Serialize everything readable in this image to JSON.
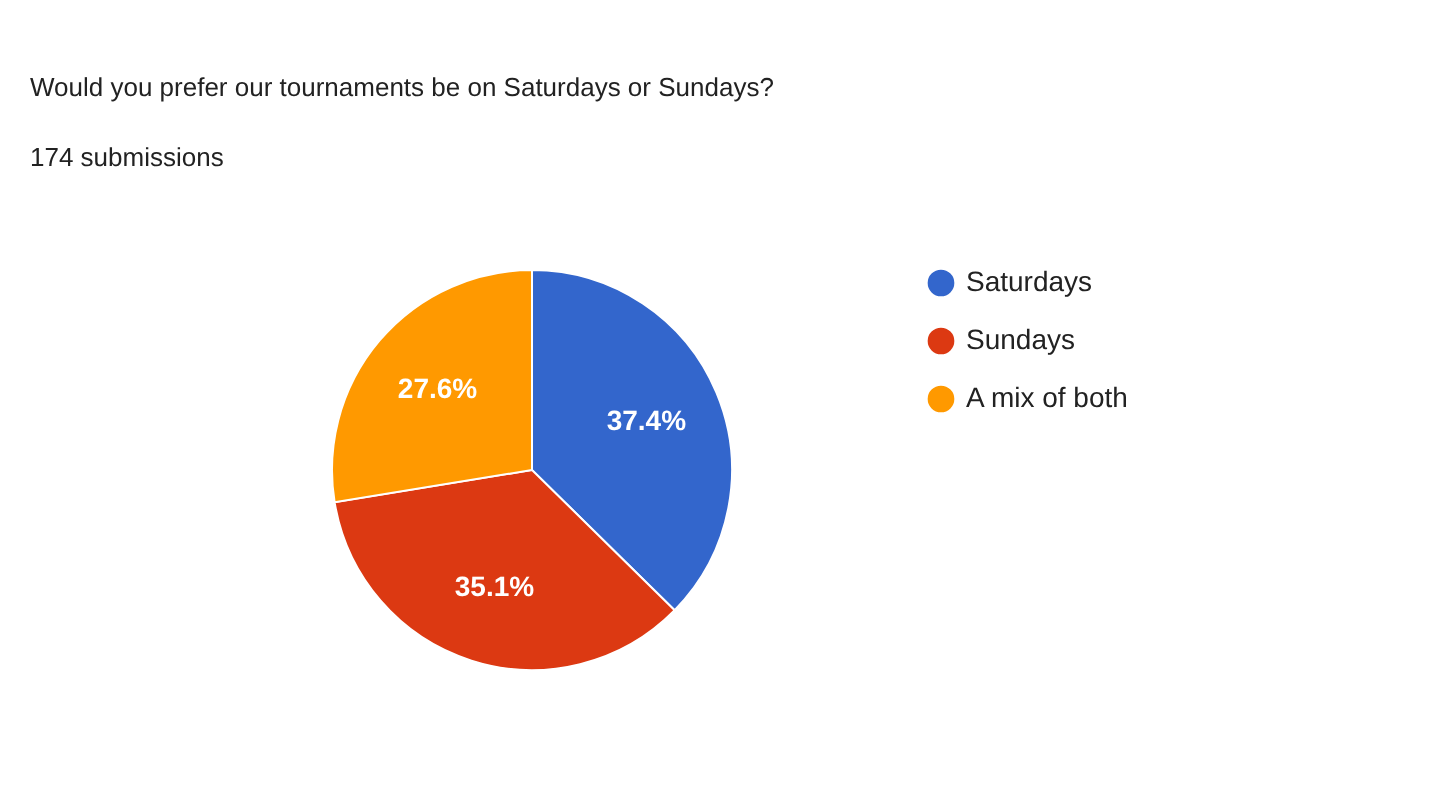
{
  "chart_data": {
    "type": "pie",
    "title": "Would you prefer our tournaments be on Saturdays or Sundays?",
    "subtitle": "174 submissions",
    "categories": [
      "Saturdays",
      "Sundays",
      "A mix of both"
    ],
    "values": [
      37.4,
      35.1,
      27.6
    ],
    "colors": [
      "#3366cc",
      "#dc3912",
      "#ff9900"
    ],
    "value_labels": [
      "37.4%",
      "35.1%",
      "27.6%"
    ],
    "legend": "right"
  }
}
